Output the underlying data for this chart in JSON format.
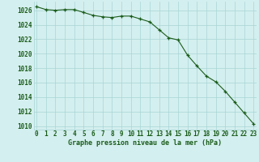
{
  "x": [
    0,
    1,
    2,
    3,
    4,
    5,
    6,
    7,
    8,
    9,
    10,
    11,
    12,
    13,
    14,
    15,
    16,
    17,
    18,
    19,
    20,
    21,
    22,
    23
  ],
  "y": [
    1026.5,
    1026.1,
    1026.0,
    1026.1,
    1026.1,
    1025.7,
    1025.3,
    1025.1,
    1025.0,
    1025.2,
    1025.2,
    1024.8,
    1024.4,
    1023.3,
    1022.2,
    1021.9,
    1019.8,
    1018.3,
    1016.9,
    1016.1,
    1014.8,
    1013.3,
    1011.8,
    1010.3
  ],
  "line_color": "#1a5c1a",
  "marker": "+",
  "bg_color": "#d4efef",
  "grid_color": "#a8d4d4",
  "xlabel": "Graphe pression niveau de la mer (hPa)",
  "xlabel_color": "#1a5c1a",
  "ytick_values": [
    1010,
    1012,
    1014,
    1016,
    1018,
    1020,
    1022,
    1024,
    1026
  ],
  "xtick_values": [
    0,
    1,
    2,
    3,
    4,
    5,
    6,
    7,
    8,
    9,
    10,
    11,
    12,
    13,
    14,
    15,
    16,
    17,
    18,
    19,
    20,
    21,
    22,
    23
  ],
  "ylim": [
    1009.5,
    1027.2
  ],
  "xlim": [
    -0.3,
    23.3
  ],
  "tick_fontsize": 5.5,
  "xlabel_fontsize": 6.0,
  "linewidth": 0.8,
  "markersize": 3.5
}
